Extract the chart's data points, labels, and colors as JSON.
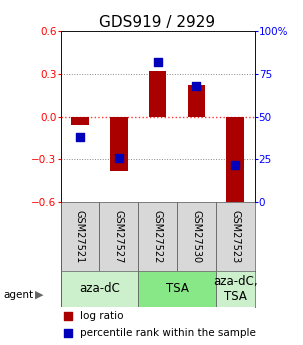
{
  "title": "GDS919 / 2929",
  "samples": [
    "GSM27521",
    "GSM27527",
    "GSM27522",
    "GSM27530",
    "GSM27523"
  ],
  "log_ratios": [
    -0.06,
    -0.38,
    0.32,
    0.22,
    -0.62
  ],
  "percentile_ranks": [
    38,
    26,
    82,
    68,
    22
  ],
  "ylim_left": [
    -0.6,
    0.6
  ],
  "ylim_right": [
    0,
    100
  ],
  "yticks_left": [
    -0.6,
    -0.3,
    0,
    0.3,
    0.6
  ],
  "yticks_right": [
    0,
    25,
    50,
    75,
    100
  ],
  "agent_groups": [
    {
      "label": "aza-dC",
      "span": [
        0,
        2
      ],
      "color": "#ccf0cc"
    },
    {
      "label": "TSA",
      "span": [
        2,
        4
      ],
      "color": "#88e888"
    },
    {
      "label": "aza-dC,\nTSA",
      "span": [
        4,
        5
      ],
      "color": "#ccf0cc"
    }
  ],
  "bar_color": "#aa0000",
  "dot_color": "#0000bb",
  "bar_width": 0.45,
  "dot_size": 30,
  "hline_color": "#ff3333",
  "grid_color": "#888888",
  "title_fontsize": 11,
  "tick_label_fontsize": 7.5,
  "sample_label_fontsize": 7,
  "agent_label_fontsize": 8.5,
  "legend_fontsize": 7.5
}
